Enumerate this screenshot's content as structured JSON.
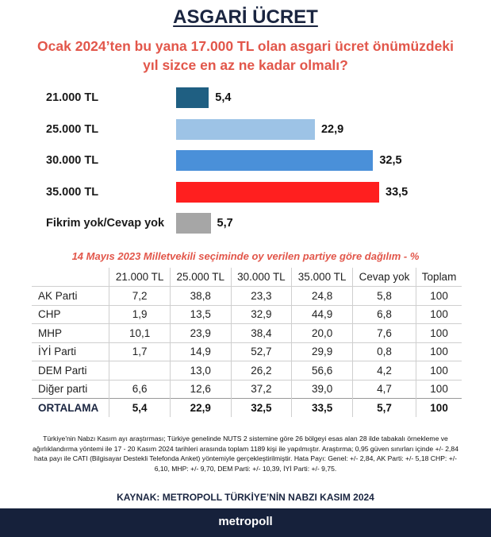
{
  "title": "ASGARİ ÜCRET",
  "question": "Ocak 2024’ten bu yana 17.000 TL olan asgari ücret önümüzdeki yıl sizce en az ne kadar olmalı?",
  "chart_data": {
    "type": "bar",
    "orientation": "horizontal",
    "title": "Ocak 2024’ten bu yana 17.000 TL olan asgari ücret önümüzdeki yıl sizce en az ne kadar olmalı?",
    "categories": [
      "21.000 TL",
      "25.000 TL",
      "30.000 TL",
      "35.000 TL",
      "Fikrim yok/Cevap yok"
    ],
    "values": [
      5.4,
      22.9,
      32.5,
      33.5,
      5.7
    ],
    "value_labels": [
      "5,4",
      "22,9",
      "32,5",
      "33,5",
      "5,7"
    ],
    "colors": [
      "#1f5f82",
      "#9dc3e6",
      "#4a90d9",
      "#ff1f1f",
      "#a6a6a6"
    ],
    "xlim": [
      0,
      33.5
    ]
  },
  "table": {
    "subtitle": "14 Mayıs 2023 Milletvekili seçiminde oy verilen partiye göre dağılım - %",
    "headers": [
      "21.000 TL",
      "25.000 TL",
      "30.000 TL",
      "35.000 TL",
      "Cevap yok",
      "Toplam"
    ],
    "rows": [
      {
        "party": "AK Parti",
        "cells": [
          "7,2",
          "38,8",
          "23,3",
          "24,8",
          "5,8",
          "100"
        ]
      },
      {
        "party": "CHP",
        "cells": [
          "1,9",
          "13,5",
          "32,9",
          "44,9",
          "6,8",
          "100"
        ]
      },
      {
        "party": "MHP",
        "cells": [
          "10,1",
          "23,9",
          "38,4",
          "20,0",
          "7,6",
          "100"
        ]
      },
      {
        "party": "İYİ Parti",
        "cells": [
          "1,7",
          "14,9",
          "52,7",
          "29,9",
          "0,8",
          "100"
        ]
      },
      {
        "party": "DEM Parti",
        "cells": [
          "",
          "13,0",
          "26,2",
          "56,6",
          "4,2",
          "100"
        ]
      },
      {
        "party": "Diğer parti",
        "cells": [
          "6,6",
          "12,6",
          "37,2",
          "39,0",
          "4,7",
          "100"
        ]
      }
    ],
    "average": {
      "party": "ORTALAMA",
      "cells": [
        "5,4",
        "22,9",
        "32,5",
        "33,5",
        "5,7",
        "100"
      ]
    }
  },
  "methodology": "Türkiye'nin Nabzı Kasım ayı araştırması; Türkiye genelinde NUTS 2 sistemine göre 26 bölgeyi esas alan 28 ilde tabakalı örnekleme ve ağırlıklandırma yöntemi ile 17 - 20 Kasım 2024 tarihleri arasında toplam 1189 kişi ile yapılmıştır. Araştırma; 0,95 güven sınırları içinde +/- 2,84 hata payı ile CATI (Bilgisayar Destekli Telefonda Anket) yöntemiyle gerçekleştirilmiştir. Hata Payı: Genel: +/- 2,84, AK Parti: +/- 5,18 CHP: +/- 6,10, MHP: +/- 9,70, DEM Parti: +/- 10,39, İYİ Parti: +/- 9,75.",
  "source": "KAYNAK: METROPOLL TÜRKİYE’NİN NABZI KASIM 2024",
  "brand": "metropoll"
}
